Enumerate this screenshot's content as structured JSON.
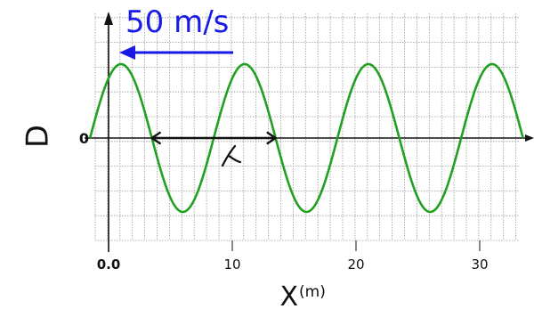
{
  "chart_data": {
    "type": "line",
    "ylabel": "D",
    "xlabel": "X",
    "xunit": "(m)",
    "y_zero_label": "0",
    "x_ticks": [
      {
        "value": 0,
        "label": "0.0"
      },
      {
        "value": 10,
        "label": "10"
      },
      {
        "value": 20,
        "label": "20"
      },
      {
        "value": 30,
        "label": "30"
      }
    ],
    "xlim": [
      -1.2,
      33.5
    ],
    "ylim": [
      -1.4,
      1.6
    ],
    "wave": {
      "wavelength": 10,
      "amplitude": 1,
      "peak_x": 1,
      "x_start": -1.5,
      "x_end": 33.5,
      "color": "#22a022"
    },
    "speed_annotation": {
      "text": "50 m/s",
      "direction": "left",
      "color": "#1a1ae6"
    },
    "wavelength_annotation": {
      "symbol": "λ",
      "from_x": 3.5,
      "to_x": 13.5
    }
  }
}
